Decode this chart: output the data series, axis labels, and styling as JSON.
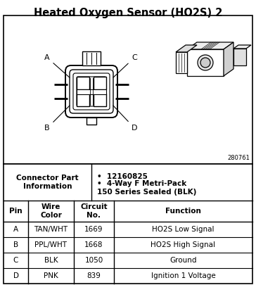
{
  "title": "Heated Oxygen Sensor (HO2S) 2",
  "diagram_label": "280761",
  "connector_part_info_label": "Connector Part\nInformation",
  "connector_part_info_bullets": [
    "12160825",
    "4-Way F Metri-Pack\n150 Series Sealed (BLK)"
  ],
  "table_headers": [
    "Pin",
    "Wire\nColor",
    "Circuit\nNo.",
    "Function"
  ],
  "table_rows": [
    [
      "A",
      "TAN/WHT",
      "1669",
      "HO2S Low Signal"
    ],
    [
      "B",
      "PPL/WHT",
      "1668",
      "HO2S High Signal"
    ],
    [
      "C",
      "BLK",
      "1050",
      "Ground"
    ],
    [
      "D",
      "PNK",
      "839",
      "Ignition 1 Voltage"
    ]
  ],
  "bg_color": "#ffffff",
  "border_color": "#000000",
  "text_color": "#000000",
  "title_fontsize": 10.5,
  "body_fontsize": 7.0,
  "header_fontsize": 7.5
}
